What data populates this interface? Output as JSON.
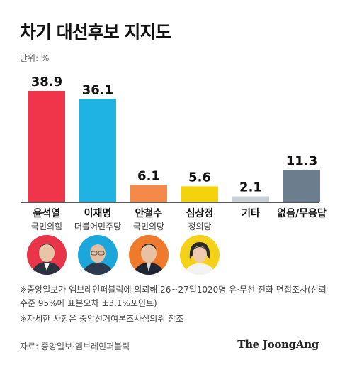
{
  "title": "차기 대선후보 지지도",
  "unit_label": "단위: %",
  "chart_data": {
    "type": "bar",
    "title": "차기 대선후보 지지도",
    "unit": "%",
    "categories": [
      "윤석열",
      "이재명",
      "안철수",
      "심상정",
      "기타",
      "없음/무응답"
    ],
    "parties": [
      "국민의힘",
      "더불어민주당",
      "국민의당",
      "정의당",
      "",
      ""
    ],
    "values": [
      38.9,
      36.1,
      6.1,
      5.6,
      2.1,
      11.3
    ],
    "value_labels": [
      "38.9",
      "36.1",
      "6.1",
      "5.6",
      "2.1",
      "11.3"
    ],
    "colors": [
      "#f0354a",
      "#1eb3e3",
      "#f5894a",
      "#f5d30c",
      "#c9d0d6",
      "#6c7e8e"
    ],
    "ylim": [
      0,
      38.9
    ],
    "grid": false,
    "legend": "none"
  },
  "photos": [
    {
      "name": "yoon-photo",
      "bg": "#e8354a"
    },
    {
      "name": "lee-photo",
      "bg": "#1ca7dc"
    },
    {
      "name": "ahn-photo",
      "bg": "#f07a2c"
    },
    {
      "name": "sim-photo",
      "bg": "#f5d21a"
    }
  ],
  "notes": {
    "note1": "※중앙일보가 엠브레인퍼블릭에 의뢰해 26~27일1020명 유·무선 전화 면접조사(신뢰수준 95%에 표본오차 ±3.1%포인트)",
    "note2": "※자세한 사항은 중앙선거여론조사심의위 참조"
  },
  "source": "자료: 중앙일보·엠브레인퍼블릭",
  "brand": "The JoongAng"
}
